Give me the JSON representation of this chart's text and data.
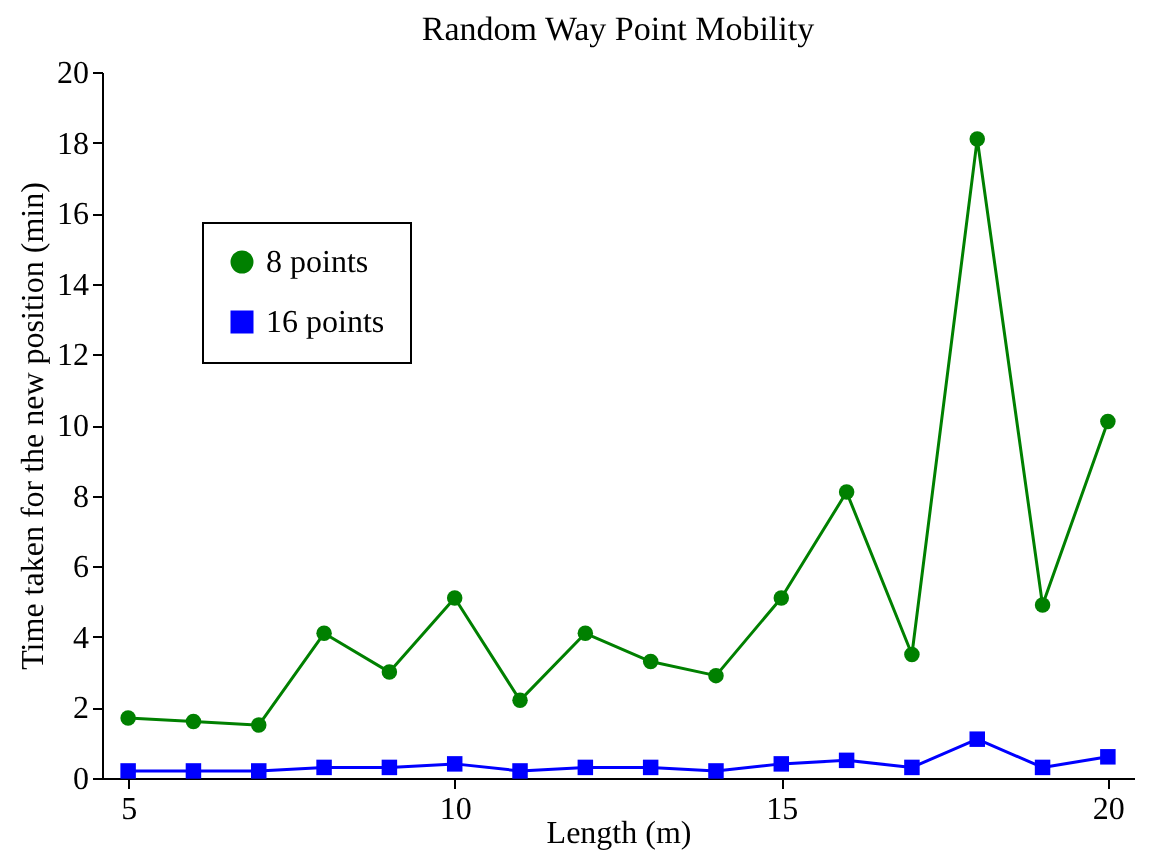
{
  "chart_data": {
    "type": "line",
    "title": "Random Way Point Mobility",
    "xlabel": "Length (m)",
    "ylabel": "Time taken for the new position (min)",
    "x": [
      5,
      6,
      7,
      8,
      9,
      10,
      11,
      12,
      13,
      14,
      15,
      16,
      17,
      18,
      19,
      20
    ],
    "series": [
      {
        "name": "8 points",
        "color": "#008000",
        "marker": "circle",
        "values": [
          1.7,
          1.6,
          1.5,
          4.1,
          3.0,
          5.1,
          2.2,
          4.1,
          3.3,
          2.9,
          5.1,
          8.1,
          3.5,
          18.1,
          4.9,
          10.1
        ]
      },
      {
        "name": "16 points",
        "color": "#0000ff",
        "marker": "square",
        "values": [
          0.2,
          0.2,
          0.2,
          0.3,
          0.3,
          0.4,
          0.2,
          0.3,
          0.3,
          0.2,
          0.4,
          0.5,
          0.3,
          1.1,
          0.3,
          0.6
        ]
      }
    ],
    "xlim": [
      4.6,
      20.4
    ],
    "xticks": [
      5,
      10,
      15,
      20
    ],
    "ylim": [
      0,
      20
    ],
    "yticks": [
      0,
      2,
      4,
      6,
      8,
      10,
      12,
      14,
      16,
      18,
      20
    ],
    "grid": false,
    "legend": "top left",
    "line_style": "solid"
  }
}
